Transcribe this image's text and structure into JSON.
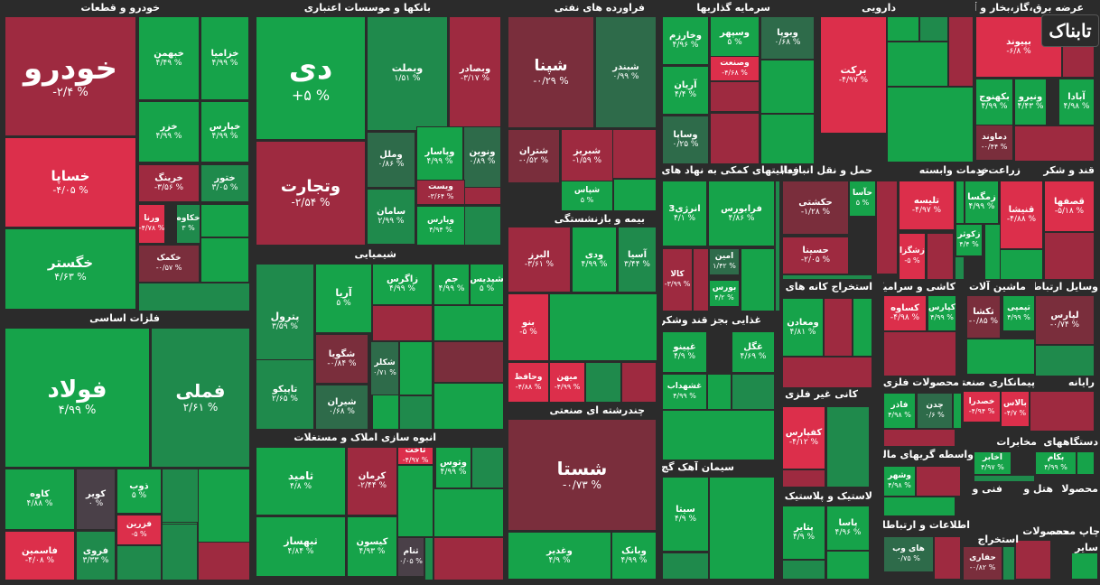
{
  "chart_data": {
    "type": "treemap",
    "colors": {
      "strong_pos": "#16a34a",
      "pos": "#1f8a4c",
      "weak_pos": "#2e6b4a",
      "neutral": "#4a4048",
      "weak_neg": "#7a2e3c",
      "neg": "#9e2a40",
      "strong_neg": "#dc2f4b",
      "background": "#2b2b2b"
    },
    "sectors": [
      {
        "name": "خودرو و قطعات",
        "tiles": [
          {
            "name": "خودرو",
            "change": "-۲/۴ %",
            "value": -2.4
          },
          {
            "name": "خساپا",
            "change": "-۴/۰۵ %",
            "value": -4.05
          },
          {
            "name": "خگستر",
            "change": "۴/۶۳ %",
            "value": 4.63
          },
          {
            "name": "خبهمن",
            "change": "۴/۴۹ %",
            "value": 4.49
          },
          {
            "name": "خزامیا",
            "change": "۴/۹۹ %",
            "value": 4.99
          },
          {
            "name": "خزر",
            "change": "۴/۹۹ %",
            "value": 4.99
          },
          {
            "name": "خپارس",
            "change": "۴/۹۹ %",
            "value": 4.99
          },
          {
            "name": "خرینگ",
            "change": "-۳/۵۶ %",
            "value": -3.56
          },
          {
            "name": "ختور",
            "change": "۳/۰۵ %",
            "value": 3.05
          },
          {
            "name": "خکاوه",
            "change": "۳ %",
            "value": 3
          },
          {
            "name": "ورنا",
            "change": "-۴/۷۸ %",
            "value": -4.78
          },
          {
            "name": "خکمک",
            "change": "-۰/۵۷ %",
            "value": -0.57
          }
        ]
      },
      {
        "name": "فلزات اساسی",
        "tiles": [
          {
            "name": "فولاد",
            "change": "۴/۹۹ %",
            "value": 4.99
          },
          {
            "name": "فملی",
            "change": "۲/۶۱ %",
            "value": 2.61
          },
          {
            "name": "کاوه",
            "change": "۴/۸۸ %",
            "value": 4.88
          },
          {
            "name": "کویر",
            "change": "۰ %",
            "value": 0
          },
          {
            "name": "ذوب",
            "change": "۵ %",
            "value": 5
          },
          {
            "name": "فزرین",
            "change": "-۵ %",
            "value": -5
          },
          {
            "name": "فاسمین",
            "change": "-۴/۰۸ %",
            "value": -4.08
          },
          {
            "name": "فروی",
            "change": "۳/۳۳ %",
            "value": 3.33
          }
        ]
      },
      {
        "name": "بانکها و موسسات اعتباری",
        "tiles": [
          {
            "name": "دی",
            "change": "+۵ %",
            "value": 5
          },
          {
            "name": "وتجارت",
            "change": "-۲/۵۴ %",
            "value": -2.54
          },
          {
            "name": "وبملت",
            "change": "۱/۵۱ %",
            "value": 1.51
          },
          {
            "name": "وبصادر",
            "change": "-۳/۱۷ %",
            "value": -3.17
          },
          {
            "name": "وملل",
            "change": "۰/۸۶ %",
            "value": 0.86
          },
          {
            "name": "وپاسار",
            "change": "۴/۹۹ %",
            "value": 4.99
          },
          {
            "name": "ونوین",
            "change": "۰/۸۹ %",
            "value": 0.89
          },
          {
            "name": "سامان",
            "change": "۲/۹۹ %",
            "value": 2.99
          },
          {
            "name": "ویست",
            "change": "-۳/۶۴ %",
            "value": -3.64
          },
          {
            "name": "وپارس",
            "change": "۴/۹۴ %",
            "value": 4.94
          }
        ]
      },
      {
        "name": "شیمیایی",
        "tiles": [
          {
            "name": "پترول",
            "change": "۳/۵۹ %",
            "value": 3.59
          },
          {
            "name": "آریا",
            "change": "۵ %",
            "value": 5
          },
          {
            "name": "زاگرس",
            "change": "۴/۹۹ %",
            "value": 4.99
          },
          {
            "name": "جم",
            "change": "۴/۹۹ %",
            "value": 4.99
          },
          {
            "name": "شپدیس",
            "change": "۵ %",
            "value": 5
          },
          {
            "name": "شگویا",
            "change": "-۰/۸۴ %",
            "value": -0.84
          },
          {
            "name": "شکلر",
            "change": "۰/۷۱ %",
            "value": 0.71
          },
          {
            "name": "تاپیکو",
            "change": "۲/۶۵ %",
            "value": 2.65
          },
          {
            "name": "شیران",
            "change": "۰/۶۸ %",
            "value": 0.68
          }
        ]
      },
      {
        "name": "انبوه سازی املاک و مستغلات",
        "tiles": [
          {
            "name": "ثامید",
            "change": "۴/۸ %",
            "value": 4.8
          },
          {
            "name": "کرمان",
            "change": "-۲/۴۴ %",
            "value": -2.44
          },
          {
            "name": "ثاخت",
            "change": "-۴/۹۷ %",
            "value": -4.97
          },
          {
            "name": "وتوس",
            "change": "۴/۹۹ %",
            "value": 4.99
          },
          {
            "name": "ثبهساز",
            "change": "۴/۸۴ %",
            "value": 4.84
          },
          {
            "name": "کیسون",
            "change": "۴/۹۳ %",
            "value": 4.93
          },
          {
            "name": "ثنام",
            "change": "۰/۰۵ %",
            "value": 0.05
          }
        ]
      },
      {
        "name": "فراورده های نفتی",
        "tiles": [
          {
            "name": "شپنا",
            "change": "-۰/۲۹ %",
            "value": -0.29
          },
          {
            "name": "شبندر",
            "change": "۰/۹۹ %",
            "value": 0.99
          },
          {
            "name": "شتران",
            "change": "-۰/۵۲ %",
            "value": -0.52
          },
          {
            "name": "شبریز",
            "change": "-۱/۵۹ %",
            "value": -1.59
          },
          {
            "name": "شپاس",
            "change": "۵ %",
            "value": 5
          }
        ]
      },
      {
        "name": "بیمه و بازنشستگی",
        "tiles": [
          {
            "name": "البرز",
            "change": "-۳/۶۱ %",
            "value": -3.61
          },
          {
            "name": "ودی",
            "change": "۴/۹۹ %",
            "value": 4.99
          },
          {
            "name": "آسیا",
            "change": "۳/۴۴ %",
            "value": 3.44
          },
          {
            "name": "بنو",
            "change": "-۵ %",
            "value": -5
          },
          {
            "name": "وحافظ",
            "change": "-۴/۸۸ %",
            "value": -4.88
          },
          {
            "name": "میهن",
            "change": "-۴/۹۹ %",
            "value": -4.99
          }
        ]
      },
      {
        "name": "چندرشته ای صنعتی",
        "tiles": [
          {
            "name": "شستا",
            "change": "-۰/۷۳ %",
            "value": -0.73
          },
          {
            "name": "وغدیر",
            "change": "۴/۹ %",
            "value": 4.9
          },
          {
            "name": "وبانک",
            "change": "۴/۹۹ %",
            "value": 4.99
          }
        ]
      },
      {
        "name": "سرمایه گذاریها",
        "tiles": [
          {
            "name": "وخارزم",
            "change": "۴/۹۶ %",
            "value": 4.96
          },
          {
            "name": "وسپهر",
            "change": "۵ %",
            "value": 5
          },
          {
            "name": "وبوپا",
            "change": "۰/۶۸ %",
            "value": 0.68
          },
          {
            "name": "وصنعت",
            "change": "-۴/۶۸ %",
            "value": -4.68
          },
          {
            "name": "آریان",
            "change": "۴/۴ %",
            "value": 4.4
          },
          {
            "name": "وساپا",
            "change": "۰/۲۵ %",
            "value": 0.25
          }
        ]
      },
      {
        "name": "فعالیتهای کمکی به نهاد های",
        "tiles": [
          {
            "name": "انرژی3",
            "change": "۴/۱ %",
            "value": 4.1
          },
          {
            "name": "فرابورس",
            "change": "۴/۸۶ %",
            "value": 4.86
          },
          {
            "name": "کالا",
            "change": "-۳/۹۹ %",
            "value": -3.99
          },
          {
            "name": "امین",
            "change": "۱/۴۲ %",
            "value": 1.42
          },
          {
            "name": "بورس",
            "change": "۴/۲ %",
            "value": 4.2
          }
        ]
      },
      {
        "name": "غذایی بجز قند وشکر",
        "tiles": [
          {
            "name": "غپینو",
            "change": "۴/۹ %",
            "value": 4.9
          },
          {
            "name": "غگل",
            "change": "۴/۶۹ %",
            "value": 4.69
          },
          {
            "name": "غشهداب",
            "change": "۴/۹۹ %",
            "value": 4.99
          }
        ]
      },
      {
        "name": "سیمان آهک گچ",
        "tiles": [
          {
            "name": "سیتا",
            "change": "۴/۹ %",
            "value": 4.9
          }
        ]
      },
      {
        "name": "دارویی",
        "tiles": [
          {
            "name": "برکت",
            "change": "-۴/۹۷ %",
            "value": -4.97
          }
        ]
      },
      {
        "name": "حمل و نقل انبارداری و",
        "tiles": [
          {
            "name": "حکشتی",
            "change": "-۱/۲۸ %",
            "value": -1.28
          },
          {
            "name": "حسینا",
            "change": "-۲/۰۵ %",
            "value": -2.05
          },
          {
            "name": "حآسا",
            "change": "۵ %",
            "value": 5
          }
        ]
      },
      {
        "name": "استخراج کانه های فلزی",
        "tiles": [
          {
            "name": "ومعادن",
            "change": "۴/۸۱ %",
            "value": 4.81
          }
        ]
      },
      {
        "name": "کانی غیر فلزی",
        "tiles": [
          {
            "name": "کفپارس",
            "change": "-۴/۱۲ %",
            "value": -4.12
          }
        ]
      },
      {
        "name": "لاستیک و پلاستیک",
        "tiles": [
          {
            "name": "پتایر",
            "change": "۴/۹ %",
            "value": 4.9
          },
          {
            "name": "پاسا",
            "change": "۴/۹۶ %",
            "value": 4.96
          }
        ]
      },
      {
        "name": "خدمات وابسته",
        "tiles": [
          {
            "name": "تلیسه",
            "change": "-۴/۹۷ %",
            "value": -4.97
          },
          {
            "name": "زکوثر",
            "change": "۴/۴ %",
            "value": 4.4
          },
          {
            "name": "زشگزا",
            "change": "-۵ %",
            "value": -5
          }
        ]
      },
      {
        "name": "زراعت و",
        "tiles": [
          {
            "name": "زمگسا",
            "change": "۴/۹۹ %",
            "value": 4.99
          }
        ]
      },
      {
        "name": "قند و شکر",
        "tiles": [
          {
            "name": "قنیشا",
            "change": "-۴/۸۸ %",
            "value": -4.88
          },
          {
            "name": "قصفها",
            "change": "-۵/۱۸ %",
            "value": -5.18
          }
        ]
      },
      {
        "name": "عرضه برق،گاز،بخار و آب گرم",
        "tiles": [
          {
            "name": "بپیوند",
            "change": "-۶/۸ %",
            "value": -6.8
          },
          {
            "name": "بکهنوج",
            "change": "۴/۹۹ %",
            "value": 4.99
          },
          {
            "name": "ونیرو",
            "change": "۴/۴۳ %",
            "value": 4.43
          },
          {
            "name": "آبادا",
            "change": "۴/۹۸ %",
            "value": 4.98
          },
          {
            "name": "دماوند",
            "change": "-۰/۴۴ %",
            "value": -0.44
          }
        ]
      },
      {
        "name": "کاشی و سرامیک",
        "tiles": [
          {
            "name": "کساوه",
            "change": "-۴/۹۸ %",
            "value": -4.98
          },
          {
            "name": "کپارس",
            "change": "۴/۹۹ %",
            "value": 4.99
          }
        ]
      },
      {
        "name": "ماشین آلات و",
        "tiles": [
          {
            "name": "تکشا",
            "change": "-۰/۸۵ %",
            "value": -0.85
          },
          {
            "name": "تپمپی",
            "change": "۴/۹۹ %",
            "value": 4.99
          }
        ]
      },
      {
        "name": "وسایل ارتباطی",
        "tiles": [
          {
            "name": "لپارس",
            "change": "-۰/۷۴ %",
            "value": -0.74
          }
        ]
      },
      {
        "name": "محصولات فلزی",
        "tiles": [
          {
            "name": "فاذر",
            "change": "۴/۹۸ %",
            "value": 4.98
          },
          {
            "name": "چدن",
            "change": "۰/۶ %",
            "value": 0.6
          }
        ]
      },
      {
        "name": "پیمانکاری صنعتی",
        "tiles": [
          {
            "name": "خصدرا",
            "change": "-۴/۹۴ %",
            "value": -4.94
          },
          {
            "name": "بالاس",
            "change": "-۴/۷ %",
            "value": -4.7
          }
        ]
      },
      {
        "name": "رایانه",
        "tiles": []
      },
      {
        "name": "مخابرات",
        "tiles": [
          {
            "name": "اخابر",
            "change": "۴/۹۷ %",
            "value": 4.97
          }
        ]
      },
      {
        "name": "دستگاههای",
        "tiles": [
          {
            "name": "بکام",
            "change": "۴/۹۹ %",
            "value": 4.99
          }
        ]
      },
      {
        "name": "واسطه گریهای مالی",
        "tiles": [
          {
            "name": "وشهر",
            "change": "۴/۹۸ %",
            "value": 4.98
          }
        ]
      },
      {
        "name": "اطلاعات و ارتباطات",
        "tiles": [
          {
            "name": "های وب",
            "change": "۰/۷۵ %",
            "value": 0.75
          }
        ]
      },
      {
        "name": "استخراج",
        "tiles": [
          {
            "name": "حفاری",
            "change": "-۰/۸۲ %",
            "value": -0.82
          }
        ]
      },
      {
        "name": "فنی و",
        "tiles": []
      },
      {
        "name": "هتل و",
        "tiles": []
      },
      {
        "name": "محصولا",
        "tiles": []
      },
      {
        "name": "محصولات",
        "tiles": []
      },
      {
        "name": "چاپ محصولا",
        "tiles": []
      },
      {
        "name": "سایر",
        "tiles": []
      }
    ]
  },
  "logo_text": "تابناک"
}
